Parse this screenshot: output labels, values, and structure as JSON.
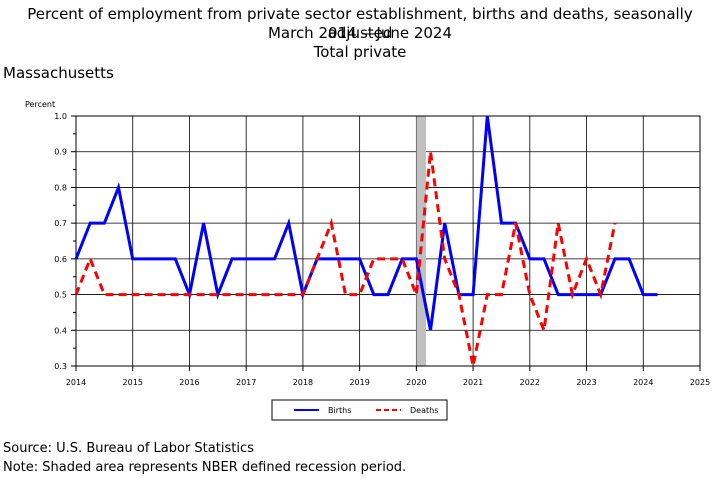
{
  "header": {
    "title_line1": "Percent of employment from private sector establishment, births and deaths, seasonally adjusted",
    "title_line2": "March 2014 —June 2024",
    "title_line3": "Total private",
    "region": "Massachusetts"
  },
  "footer": {
    "source": "Source: U.S. Bureau of Labor Statistics",
    "note": "Note: Shaded area represents NBER defined recession period."
  },
  "chart_data": {
    "type": "line",
    "ylabel": "Percent",
    "xlabel": "",
    "xlim": [
      2014,
      2025
    ],
    "ylim": [
      0.3,
      1.0
    ],
    "x_ticks": [
      "2014",
      "2015",
      "2016",
      "2017",
      "2018",
      "2019",
      "2020",
      "2021",
      "2022",
      "2023",
      "2024",
      "2025"
    ],
    "y_ticks": [
      "0.3",
      "0.4",
      "0.5",
      "0.6",
      "0.7",
      "0.8",
      "0.9",
      "1.0"
    ],
    "grid": true,
    "legend_position": "bottom",
    "recession": {
      "start": 2020.0,
      "end": 2020.17,
      "color": "#c0c0c0"
    },
    "series": [
      {
        "name": "Births",
        "color": "#0000ff",
        "dash": "solid",
        "points": [
          [
            2014.0,
            0.6
          ],
          [
            2014.25,
            0.7
          ],
          [
            2014.5,
            0.7
          ],
          [
            2014.75,
            0.8
          ],
          [
            2015.0,
            0.6
          ],
          [
            2015.25,
            0.6
          ],
          [
            2015.5,
            0.6
          ],
          [
            2015.75,
            0.6
          ],
          [
            2016.0,
            0.5
          ],
          [
            2016.25,
            0.7
          ],
          [
            2016.5,
            0.5
          ],
          [
            2016.75,
            0.6
          ],
          [
            2017.0,
            0.6
          ],
          [
            2017.25,
            0.6
          ],
          [
            2017.5,
            0.6
          ],
          [
            2017.75,
            0.7
          ],
          [
            2018.0,
            0.5
          ],
          [
            2018.25,
            0.6
          ],
          [
            2018.5,
            0.6
          ],
          [
            2018.75,
            0.6
          ],
          [
            2019.0,
            0.6
          ],
          [
            2019.25,
            0.5
          ],
          [
            2019.5,
            0.5
          ],
          [
            2019.75,
            0.6
          ],
          [
            2020.0,
            0.6
          ],
          [
            2020.25,
            0.4
          ],
          [
            2020.5,
            0.7
          ],
          [
            2020.75,
            0.5
          ],
          [
            2021.0,
            0.5
          ],
          [
            2021.25,
            1.0
          ],
          [
            2021.5,
            0.7
          ],
          [
            2021.75,
            0.7
          ],
          [
            2022.0,
            0.6
          ],
          [
            2022.25,
            0.6
          ],
          [
            2022.5,
            0.5
          ],
          [
            2022.75,
            0.5
          ],
          [
            2023.0,
            0.5
          ],
          [
            2023.25,
            0.5
          ],
          [
            2023.5,
            0.6
          ],
          [
            2023.75,
            0.6
          ],
          [
            2024.0,
            0.5
          ],
          [
            2024.25,
            0.5
          ]
        ]
      },
      {
        "name": "Deaths",
        "color": "#ff0000",
        "dash": "dashed",
        "points": [
          [
            2014.0,
            0.5
          ],
          [
            2014.25,
            0.6
          ],
          [
            2014.5,
            0.5
          ],
          [
            2014.75,
            0.5
          ],
          [
            2015.0,
            0.5
          ],
          [
            2015.25,
            0.5
          ],
          [
            2015.5,
            0.5
          ],
          [
            2015.75,
            0.5
          ],
          [
            2016.0,
            0.5
          ],
          [
            2016.25,
            0.5
          ],
          [
            2016.5,
            0.5
          ],
          [
            2016.75,
            0.5
          ],
          [
            2017.0,
            0.5
          ],
          [
            2017.25,
            0.5
          ],
          [
            2017.5,
            0.5
          ],
          [
            2017.75,
            0.5
          ],
          [
            2018.0,
            0.5
          ],
          [
            2018.25,
            0.6
          ],
          [
            2018.5,
            0.7
          ],
          [
            2018.75,
            0.5
          ],
          [
            2019.0,
            0.5
          ],
          [
            2019.25,
            0.6
          ],
          [
            2019.5,
            0.6
          ],
          [
            2019.75,
            0.6
          ],
          [
            2020.0,
            0.5
          ],
          [
            2020.25,
            0.9
          ],
          [
            2020.5,
            0.6
          ],
          [
            2020.75,
            0.5
          ],
          [
            2021.0,
            0.3
          ],
          [
            2021.25,
            0.5
          ],
          [
            2021.5,
            0.5
          ],
          [
            2021.75,
            0.7
          ],
          [
            2022.0,
            0.5
          ],
          [
            2022.25,
            0.4
          ],
          [
            2022.5,
            0.7
          ],
          [
            2022.75,
            0.5
          ],
          [
            2023.0,
            0.6
          ],
          [
            2023.25,
            0.5
          ],
          [
            2023.5,
            0.7
          ]
        ]
      }
    ]
  }
}
